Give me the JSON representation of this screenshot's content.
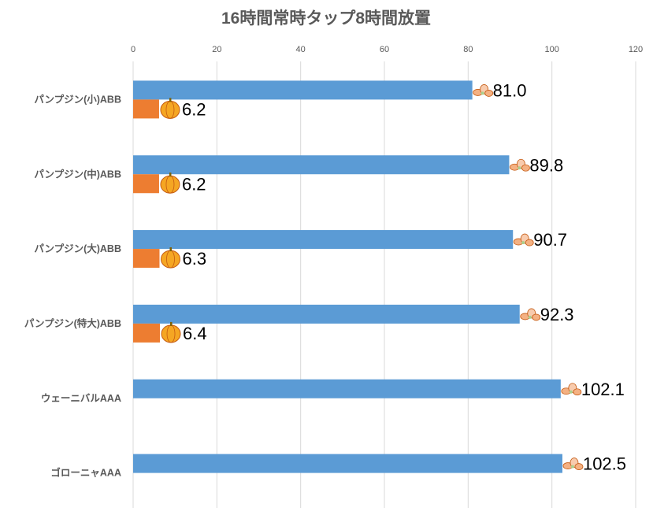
{
  "chart_data": {
    "type": "bar",
    "orientation": "horizontal",
    "title": "16時間常時タップ8時間放置",
    "xlabel": "",
    "ylabel": "",
    "xlim": [
      0,
      120
    ],
    "xticks": [
      0,
      20,
      40,
      60,
      80,
      100,
      120
    ],
    "grid": true,
    "axis_position": "top",
    "categories": [
      "パンプジン(小)ABB",
      "パンプジン(中)ABB",
      "パンプジン(大)ABB",
      "パンプジン(特大)ABB",
      "ウェーニバルAAA",
      "ゴローニャAAA"
    ],
    "series": [
      {
        "name": "ginger",
        "icon": "ginger-icon",
        "color": "#5B9BD5",
        "values": [
          81.0,
          89.8,
          90.7,
          92.3,
          102.1,
          102.5
        ],
        "labels": [
          "81.0",
          "89.8",
          "90.7",
          "92.3",
          "102.1",
          "102.5"
        ]
      },
      {
        "name": "pumpkin",
        "icon": "pumpkin-icon",
        "color": "#ED7D31",
        "values": [
          6.2,
          6.2,
          6.3,
          6.4,
          null,
          null
        ],
        "labels": [
          "6.2",
          "6.2",
          "6.3",
          "6.4",
          null,
          null
        ]
      }
    ]
  }
}
